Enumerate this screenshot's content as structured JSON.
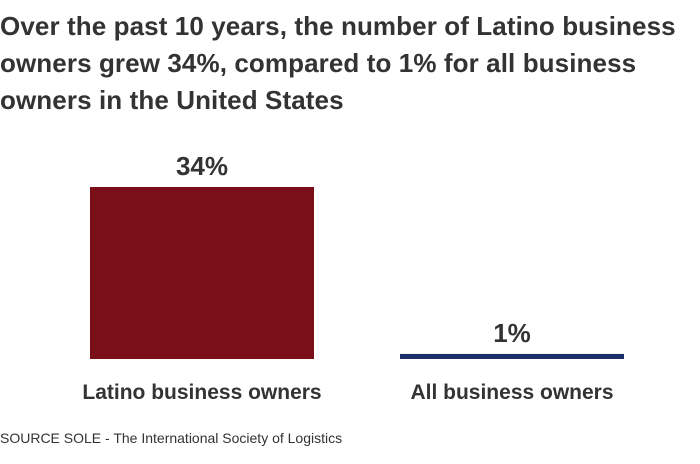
{
  "chart_data": {
    "type": "bar",
    "title": "Over the past 10 years, the number of Latino business owners grew 34%, compared to 1% for all business owners in the United States",
    "categories": [
      "Latino business owners",
      "All business owners"
    ],
    "values": [
      34,
      1
    ],
    "value_labels": [
      "34%",
      "1%"
    ],
    "colors": [
      "#7a0e19",
      "#1c2f6b"
    ],
    "xlabel": "",
    "ylabel": "",
    "ylim": [
      0,
      34
    ],
    "grid": false,
    "legend": "none"
  },
  "source": "SOURCE SOLE - The International Society of Logistics"
}
